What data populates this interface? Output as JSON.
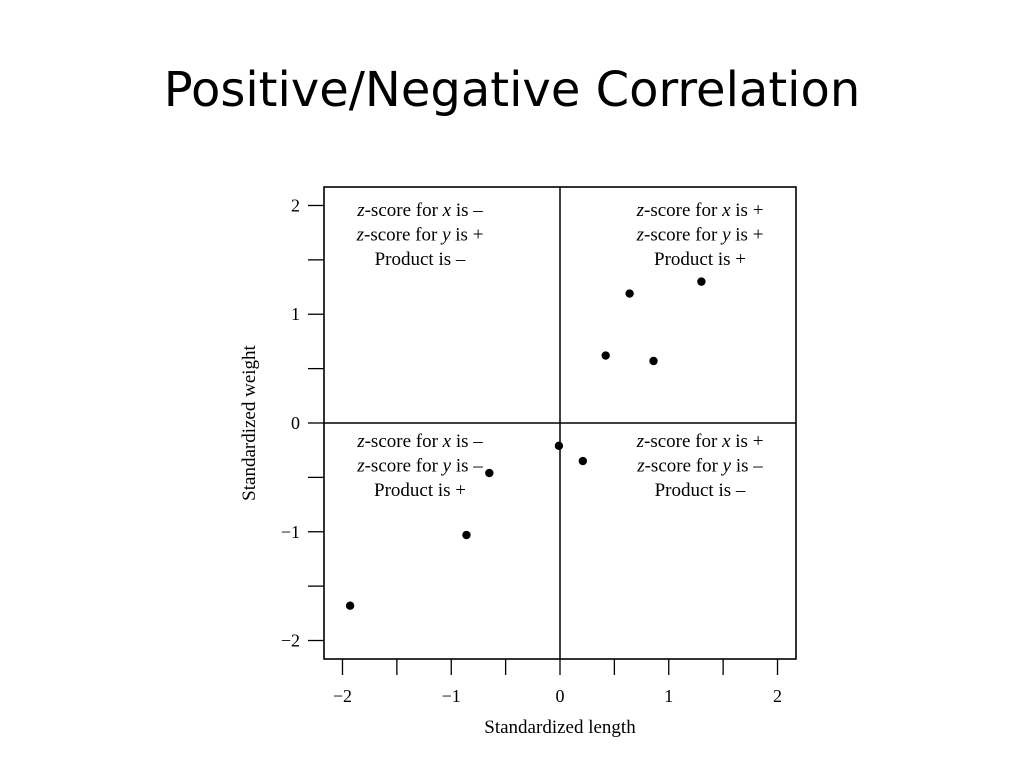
{
  "slide": {
    "title": "Positive/Negative Correlation"
  },
  "chart_data": {
    "type": "scatter",
    "title": "",
    "xlabel": "Standardized length",
    "ylabel": "Standardized weight",
    "xlim": [
      -2.17,
      2.17
    ],
    "ylim": [
      -2.17,
      2.17
    ],
    "x_ticks": [
      -2,
      -1,
      0,
      1,
      2
    ],
    "x_tick_labels": [
      "−2",
      "−1",
      "0",
      "1",
      "2"
    ],
    "x_minor_ticks": [
      -1.5,
      -0.5,
      0.5,
      1.5
    ],
    "y_ticks": [
      -2,
      -1,
      0,
      1,
      2
    ],
    "y_tick_labels": [
      "−2",
      "−1",
      "0",
      "1",
      "2"
    ],
    "y_minor_ticks": [
      -1.5,
      -0.5,
      0.5,
      1.5
    ],
    "grid": false,
    "reference_lines": {
      "x": 0,
      "y": 0
    },
    "points": [
      {
        "x": -1.93,
        "y": -1.68
      },
      {
        "x": -0.86,
        "y": -1.03
      },
      {
        "x": -0.65,
        "y": -0.46
      },
      {
        "x": -0.01,
        "y": -0.21
      },
      {
        "x": 0.21,
        "y": -0.35
      },
      {
        "x": 0.42,
        "y": 0.62
      },
      {
        "x": 0.64,
        "y": 1.19
      },
      {
        "x": 0.86,
        "y": 0.57
      },
      {
        "x": 1.3,
        "y": 1.3
      }
    ],
    "quadrant_annotations": {
      "top_left": [
        "z-score for x is –",
        "z-score for y is +",
        "Product is –"
      ],
      "top_right": [
        "z-score for x is +",
        "z-score for y is +",
        "Product is +"
      ],
      "bottom_left": [
        "z-score for x is –",
        "z-score for y is –",
        "Product is +"
      ],
      "bottom_right": [
        "z-score for x is +",
        "z-score for y is –",
        "Product is –"
      ]
    },
    "colors": {
      "ink": "#000000",
      "background": "#ffffff"
    }
  }
}
